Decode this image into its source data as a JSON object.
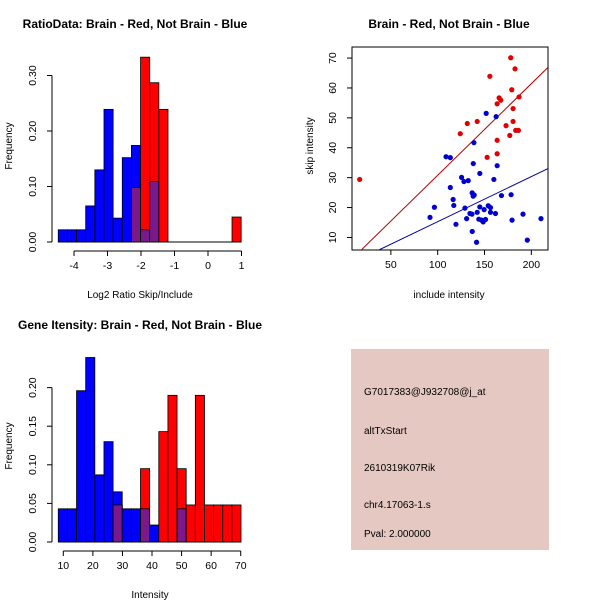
{
  "colors": {
    "red": "#ff0000",
    "blue": "#0000ff",
    "overlap": "#7a1a8a",
    "red_line": "#b00000",
    "blue_line": "#00009a",
    "red_point": "#e00000",
    "blue_point": "#0000d0",
    "info_bg": "#e6c8c2",
    "pval": "#a00000"
  },
  "chart_data": [
    {
      "type": "bar",
      "title": "RatioData: Brain - Red, Not Brain - Blue",
      "xlabel": "Log2 Ratio Skip/Include",
      "ylabel": "Frequency",
      "xlim": [
        -4.6,
        1.3
      ],
      "ylim": [
        0,
        0.33
      ],
      "xticks": [
        -4,
        -3,
        -2,
        -1,
        0,
        1
      ],
      "yticks": [
        0.0,
        0.1,
        0.2,
        0.3
      ],
      "ytick_labels": [
        "0.00",
        "0.10",
        "0.20",
        "0.30"
      ],
      "bin_start": -4.47,
      "bin_width": 0.273,
      "series": [
        {
          "name": "Not Brain",
          "color": "blue",
          "values": [
            0.022,
            0.022,
            0.022,
            0.065,
            0.13,
            0.239,
            0.043,
            0.152,
            0.174,
            0.022,
            0.109,
            0,
            0,
            0,
            0,
            0,
            0,
            0,
            0,
            0
          ]
        },
        {
          "name": "Brain",
          "color": "red",
          "values": [
            0,
            0,
            0,
            0,
            0,
            0,
            0,
            0,
            0.098,
            0.333,
            0.287,
            0.239,
            0,
            0,
            0,
            0,
            0,
            0,
            0,
            0.045
          ]
        }
      ]
    },
    {
      "type": "scatter",
      "title": "Brain - Red, Not Brain - Blue",
      "xlabel": "include intensity",
      "ylabel": "skip intensity",
      "xlim": [
        8.5,
        217.8
      ],
      "ylim": [
        5.8,
        73.7
      ],
      "xticks": [
        50,
        100,
        150,
        200
      ],
      "yticks": [
        10,
        20,
        30,
        40,
        50,
        60,
        70
      ],
      "series": [
        {
          "name": "Brain",
          "color": "red",
          "fit": {
            "slope": 0.3063,
            "intercept": 0.17
          },
          "points": [
            [
              16.7,
              29.4
            ],
            [
              124.1,
              44.7
            ],
            [
              131.6,
              48.1
            ],
            [
              142.2,
              48.8
            ],
            [
              155.7,
              63.9
            ],
            [
              152.8,
              36.8
            ],
            [
              178,
              70.1
            ],
            [
              182.6,
              66.4
            ],
            [
              179.1,
              59.4
            ],
            [
              165.6,
              56.7
            ],
            [
              167.4,
              55.9
            ],
            [
              163.5,
              54.7
            ],
            [
              186.9,
              57
            ],
            [
              180.5,
              53.1
            ],
            [
              180.5,
              48.8
            ],
            [
              173,
              47.4
            ],
            [
              183.3,
              45.8
            ],
            [
              186.2,
              45.8
            ],
            [
              177,
              44.1
            ],
            [
              163.5,
              42.5
            ],
            [
              163.5,
              38
            ]
          ]
        },
        {
          "name": "Not Brain",
          "color": "blue",
          "fit": {
            "slope": 0.1507,
            "intercept": 0.2
          },
          "points": [
            [
              151.8,
              51.5
            ],
            [
              162.4,
              50.4
            ],
            [
              138.7,
              41.7
            ],
            [
              108.9,
              37
            ],
            [
              113.5,
              36.7
            ],
            [
              138,
              34.7
            ],
            [
              163.5,
              34
            ],
            [
              145,
              31.4
            ],
            [
              125.5,
              30.1
            ],
            [
              128,
              28.7
            ],
            [
              132.6,
              29
            ],
            [
              160,
              29.4
            ],
            [
              113.5,
              26.7
            ],
            [
              136.8,
              24.9
            ],
            [
              139,
              24.2
            ],
            [
              137.9,
              23.8
            ],
            [
              168.1,
              24
            ],
            [
              178.4,
              24.3
            ],
            [
              116.5,
              22.7
            ],
            [
              117.2,
              20.7
            ],
            [
              96.5,
              20.1
            ],
            [
              129.1,
              19.8
            ],
            [
              145,
              20.2
            ],
            [
              154,
              20.6
            ],
            [
              156.4,
              20
            ],
            [
              91.8,
              16.7
            ],
            [
              119.5,
              14.4
            ],
            [
              130.9,
              16.3
            ],
            [
              134.4,
              18
            ],
            [
              136.6,
              17.8
            ],
            [
              142.2,
              18.4
            ],
            [
              149.6,
              19.3
            ],
            [
              156.4,
              18.4
            ],
            [
              161.7,
              18
            ],
            [
              143.9,
              16.1
            ],
            [
              146.8,
              15.8
            ],
            [
              148.6,
              15.2
            ],
            [
              151.1,
              16
            ],
            [
              179.4,
              15.8
            ],
            [
              191.1,
              17.8
            ],
            [
              210.3,
              16.3
            ],
            [
              136.9,
              12
            ],
            [
              141.5,
              8.4
            ],
            [
              195.7,
              9.1
            ]
          ]
        }
      ]
    },
    {
      "type": "bar",
      "title": "Gene Itensity: Brain - Red, Not Brain - Blue",
      "xlabel": "Intensity",
      "ylabel": "Frequency",
      "xlim": [
        6,
        72
      ],
      "ylim": [
        0,
        0.24
      ],
      "xticks": [
        10,
        20,
        30,
        40,
        50,
        60,
        70
      ],
      "yticks": [
        0,
        0.05,
        0.1,
        0.15,
        0.2
      ],
      "ytick_labels": [
        "0.00",
        "0.05",
        "0.10",
        "0.15",
        "0.20"
      ],
      "bin_start": 8.3,
      "bin_width": 3.09,
      "series": [
        {
          "name": "Not Brain",
          "color": "blue",
          "values": [
            0.043,
            0.043,
            0.196,
            0.239,
            0.087,
            0.13,
            0.065,
            0.043,
            0.043,
            0.043,
            0.022,
            0,
            0,
            0.043,
            0,
            0,
            0,
            0,
            0,
            0
          ]
        },
        {
          "name": "Brain",
          "color": "red",
          "values": [
            0,
            0,
            0,
            0,
            0,
            0,
            0.048,
            0,
            0,
            0.095,
            0,
            0.143,
            0.19,
            0.095,
            0.048,
            0.19,
            0.048,
            0.048,
            0.048,
            0.048
          ]
        }
      ]
    }
  ],
  "info": {
    "probe_id": "G7017383@J932708@j_at",
    "event_type": "altTxStart",
    "gene": "2610319K07Rik",
    "location": "chr4.17063-1.s",
    "pval": "Pval: 2.000000"
  }
}
